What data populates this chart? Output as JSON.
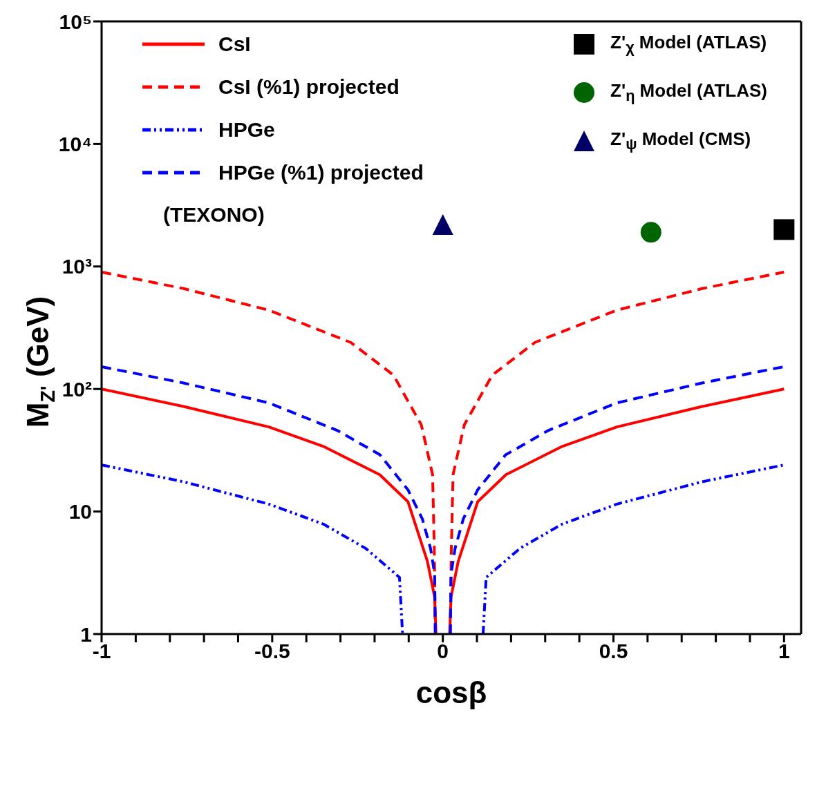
{
  "chart_data": {
    "type": "line",
    "xlabel": "cosβ",
    "ylabel": "M$_{Z'}$ (GeV)",
    "log": "y",
    "legend": "top",
    "xlim": [
      -1,
      1.05
    ],
    "ylim": [
      1,
      100000
    ],
    "xticks": [
      -1,
      {
        "value": -0.9,
        "label": null
      },
      {
        "value": -0.8,
        "label": null
      },
      {
        "value": -0.7,
        "label": null
      },
      {
        "value": -0.6,
        "label": null
      },
      -0.5,
      {
        "value": -0.4,
        "label": null
      },
      {
        "value": -0.3,
        "label": null
      },
      {
        "value": -0.2,
        "label": null
      },
      {
        "value": -0.1,
        "label": null
      },
      0,
      {
        "value": 0.1,
        "label": null
      },
      {
        "value": 0.2,
        "label": null
      },
      {
        "value": 0.3,
        "label": null
      },
      {
        "value": 0.4,
        "label": null
      },
      0.5,
      {
        "value": 0.6,
        "label": null
      },
      {
        "value": 0.7,
        "label": null
      },
      {
        "value": 0.8,
        "label": null
      },
      {
        "value": 0.9,
        "label": null
      },
      1
    ],
    "yticks": [
      1,
      10,
      {
        "value": 100,
        "label": "10²"
      },
      {
        "value": 1000,
        "label": "10³"
      },
      {
        "value": 10000,
        "label": "10⁴"
      },
      {
        "value": 100000,
        "label": "10⁵"
      }
    ],
    "annotations": [
      "(TEXONO)"
    ],
    "series": [
      {
        "name": "CsI",
        "color": "#ff0000",
        "line_style": "solid",
        "x": [
          -1,
          -0.76,
          -0.51,
          -0.35,
          -0.185,
          -0.102,
          -0.045,
          -0.024,
          -0.02,
          0,
          0.02,
          0.024,
          0.045,
          0.102,
          0.185,
          0.35,
          0.51,
          0.76,
          1
        ],
        "values": [
          100,
          72,
          49,
          34,
          20,
          12,
          3.9,
          2,
          1,
          null,
          1,
          2,
          3.9,
          12,
          20,
          34,
          49,
          72,
          100
        ]
      },
      {
        "name": "CsI (%1) projected",
        "color": "#ff0000",
        "line_style": "dashed",
        "x": [
          -1,
          -0.76,
          -0.51,
          -0.27,
          -0.145,
          -0.063,
          -0.03,
          -0.025,
          -0.022,
          0,
          0.022,
          0.025,
          0.03,
          0.063,
          0.145,
          0.27,
          0.51,
          0.76,
          1
        ],
        "values": [
          900,
          660,
          440,
          240,
          130,
          51,
          20,
          5,
          1,
          null,
          1,
          5,
          20,
          51,
          130,
          240,
          440,
          660,
          900
        ]
      },
      {
        "name": "HPGe",
        "color": "#0000ff",
        "line_style": "dotted",
        "x": [
          -1,
          -0.76,
          -0.51,
          -0.35,
          -0.226,
          -0.127,
          -0.118,
          0,
          0.118,
          0.127,
          0.226,
          0.35,
          0.51,
          0.76,
          1
        ],
        "values": [
          24,
          17.5,
          11.5,
          7.9,
          5,
          2.9,
          1,
          null,
          1,
          2.9,
          5,
          7.9,
          11.5,
          17.5,
          24
        ]
      },
      {
        "name": "HPGe (%1) projected",
        "color": "#0000ff",
        "line_style": "dashed",
        "x": [
          -1,
          -0.76,
          -0.51,
          -0.31,
          -0.184,
          -0.102,
          -0.06,
          -0.036,
          -0.024,
          -0.022,
          0,
          0.022,
          0.024,
          0.036,
          0.06,
          0.102,
          0.184,
          0.31,
          0.51,
          0.76,
          1
        ],
        "values": [
          152,
          112,
          77,
          46,
          29,
          15,
          8.7,
          5,
          3.1,
          1,
          null,
          1,
          3.1,
          5,
          8.7,
          15,
          29,
          46,
          77,
          112,
          152
        ]
      },
      {
        "name": "Z'$_{χ}$ Model (ATLAS)",
        "type": "scatter",
        "color": "#000000",
        "marker": "square",
        "x": [
          1
        ],
        "values": [
          2000
        ]
      },
      {
        "name": "Z'$_{η}$ Model (ATLAS)",
        "type": "scatter",
        "color": "#006400",
        "marker": "circle",
        "x": [
          0.61
        ],
        "values": [
          1900
        ]
      },
      {
        "name": "Z'$_{ψ}$ Model (CMS)",
        "type": "scatter",
        "color": "#000066",
        "marker": "triangle",
        "x": [
          0
        ],
        "values": [
          2200
        ]
      }
    ]
  }
}
